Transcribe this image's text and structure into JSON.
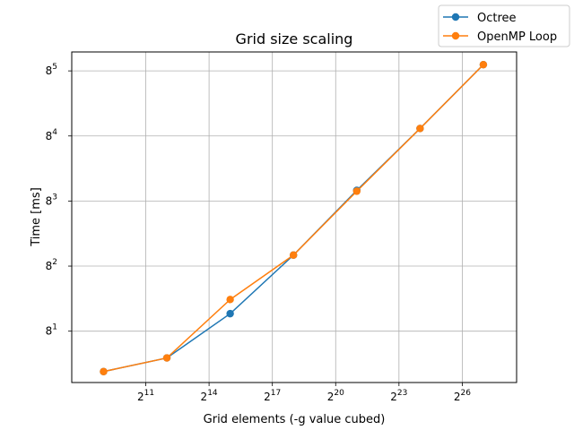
{
  "chart_data": {
    "type": "line",
    "title": "Grid size scaling",
    "xlabel": "Grid elements (-g value cubed)",
    "ylabel": "Time [ms]",
    "x_scale": "log2",
    "y_scale": "log8",
    "grid": true,
    "legend_position": "top-right",
    "x_ticks": [
      {
        "base": "2",
        "exp": "11",
        "value": 2048
      },
      {
        "base": "2",
        "exp": "14",
        "value": 16384
      },
      {
        "base": "2",
        "exp": "17",
        "value": 131072
      },
      {
        "base": "2",
        "exp": "20",
        "value": 1048576
      },
      {
        "base": "2",
        "exp": "23",
        "value": 8388608
      },
      {
        "base": "2",
        "exp": "26",
        "value": 67108864
      }
    ],
    "y_ticks": [
      {
        "base": "8",
        "exp": "1",
        "value": 8
      },
      {
        "base": "8",
        "exp": "2",
        "value": 64
      },
      {
        "base": "8",
        "exp": "3",
        "value": 512
      },
      {
        "base": "8",
        "exp": "4",
        "value": 4096
      },
      {
        "base": "8",
        "exp": "5",
        "value": 32768
      }
    ],
    "x": [
      512,
      4096,
      32768,
      262144,
      2097152,
      16777216,
      134217728
    ],
    "series": [
      {
        "name": "Octree",
        "color": "#1f77b4",
        "values": [
          2.2,
          3.4,
          14,
          91,
          720,
          5200,
          40000
        ]
      },
      {
        "name": "OpenMP Loop",
        "color": "#ff7f0e",
        "values": [
          2.2,
          3.4,
          22,
          91,
          700,
          5200,
          40000
        ]
      }
    ],
    "xlim": [
      180,
      400000000
    ],
    "ylim": [
      1.55,
      60000
    ]
  }
}
